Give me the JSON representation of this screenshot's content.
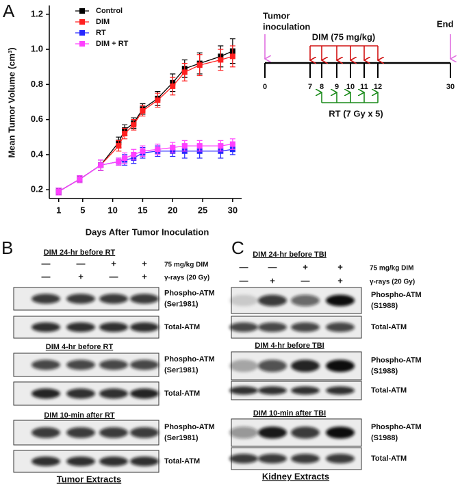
{
  "panel_labels": [
    "A",
    "B",
    "C"
  ],
  "chart_data": {
    "type": "line",
    "ylabel": "Mean Tumor Volume (cm³)",
    "xlabel": "Days After Tumor Inoculation",
    "x": [
      1,
      4.5,
      8,
      11,
      12,
      13.5,
      15,
      17.5,
      20,
      22,
      24.5,
      28,
      30
    ],
    "xlim": [
      0,
      31.5
    ],
    "xticks": [
      1,
      5,
      10,
      15,
      20,
      25,
      30
    ],
    "ylim": [
      0.15,
      1.25
    ],
    "yticks": [
      0.2,
      0.4,
      0.6,
      0.8,
      {
        "value": 1,
        "label": "1.0"
      },
      1.2
    ],
    "legend": "upper left",
    "series": [
      {
        "name": "Control",
        "color": "#000000",
        "values": [
          0.19,
          0.26,
          0.34,
          0.47,
          0.54,
          0.58,
          0.66,
          0.72,
          0.81,
          0.89,
          0.92,
          0.96,
          0.99
        ],
        "errors": [
          0.02,
          0.02,
          0.03,
          0.03,
          0.03,
          0.03,
          0.03,
          0.04,
          0.05,
          0.05,
          0.06,
          0.06,
          0.07
        ]
      },
      {
        "name": "DIM",
        "color": "#ff2020",
        "values": [
          0.19,
          0.26,
          0.34,
          0.45,
          0.52,
          0.57,
          0.65,
          0.71,
          0.79,
          0.87,
          0.91,
          0.94,
          0.96
        ],
        "errors": [
          0.02,
          0.02,
          0.03,
          0.03,
          0.03,
          0.03,
          0.03,
          0.04,
          0.05,
          0.05,
          0.06,
          0.06,
          0.06
        ]
      },
      {
        "name": "RT",
        "color": "#2828ff",
        "values": [
          0.19,
          0.26,
          0.34,
          0.36,
          0.37,
          0.38,
          0.41,
          0.42,
          0.42,
          0.42,
          0.42,
          0.42,
          0.43
        ],
        "errors": [
          0.02,
          0.02,
          0.03,
          0.02,
          0.03,
          0.03,
          0.03,
          0.03,
          0.03,
          0.04,
          0.04,
          0.04,
          0.03
        ]
      },
      {
        "name": "DIM + RT",
        "color": "#ff40ff",
        "values": [
          0.19,
          0.26,
          0.34,
          0.36,
          0.38,
          0.4,
          0.42,
          0.43,
          0.44,
          0.45,
          0.45,
          0.45,
          0.46
        ],
        "errors": [
          0.02,
          0.02,
          0.03,
          0.02,
          0.03,
          0.03,
          0.03,
          0.03,
          0.03,
          0.03,
          0.03,
          0.03,
          0.03
        ]
      }
    ]
  },
  "timeline": {
    "start_label": [
      "Tumor",
      "inoculation"
    ],
    "end_label": "End",
    "dim_label": "DIM (75 mg/kg)",
    "rt_label": "RT (7 Gy x 5)",
    "days": [
      0,
      7,
      8,
      9,
      10,
      11,
      12,
      30
    ]
  },
  "blot_panels": [
    {
      "dose_labels": [
        "75 mg/kg DIM",
        "γ-rays (20 Gy)"
      ],
      "signs": [
        [
          "—",
          "—",
          "+",
          "+"
        ],
        [
          "—",
          "+",
          "—",
          "+"
        ]
      ],
      "groups": [
        {
          "title": "DIM 24-hr before RT",
          "blots": [
            [
              "Phospho-ATM",
              "(Ser1981)"
            ],
            [
              "Total-ATM"
            ]
          ]
        },
        {
          "title": "DIM 4-hr before RT",
          "blots": [
            [
              "Phospho-ATM",
              "(Ser1981)"
            ],
            [
              "Total-ATM"
            ]
          ]
        },
        {
          "title": "DIM 10-min after RT",
          "blots": [
            [
              "Phospho-ATM",
              "(Ser1981)"
            ],
            [
              "Total-ATM"
            ]
          ]
        }
      ],
      "footer": "Tumor Extracts"
    },
    {
      "dose_labels": [
        "75 mg/kg DIM",
        "γ-rays (20 Gy)"
      ],
      "signs": [
        [
          "—",
          "—",
          "+",
          "+"
        ],
        [
          "—",
          "+",
          "—",
          "+"
        ]
      ],
      "groups": [
        {
          "title": "DIM 24-hr before TBI",
          "blots": [
            [
              "Phospho-ATM",
              "(S1988)"
            ],
            [
              "Total-ATM"
            ]
          ]
        },
        {
          "title": "DIM 4-hr before TBI",
          "blots": [
            [
              "Phospho-ATM",
              "(S1988)"
            ],
            [
              "Total-ATM"
            ]
          ]
        },
        {
          "title": "DIM 10-min after TBI",
          "blots": [
            [
              "Phospho-ATM",
              "(S1988)"
            ],
            [
              "Total-ATM"
            ]
          ]
        }
      ],
      "footer": "Kidney Extracts"
    }
  ]
}
